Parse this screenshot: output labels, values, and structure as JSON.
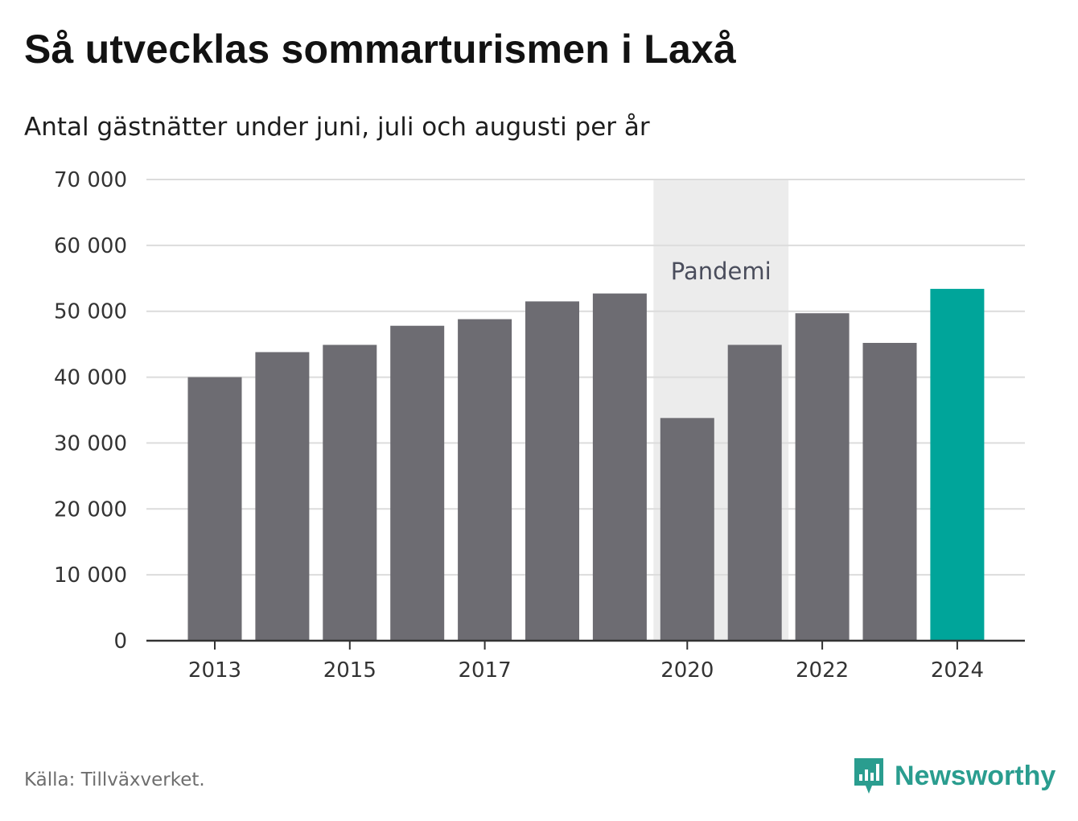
{
  "title": "Så utvecklas sommarturismen i Laxå",
  "subtitle": "Antal gästnätter under juni, juli och augusti per år",
  "source": "Källa: Tillväxverket.",
  "brand": {
    "name": "Newsworthy",
    "icon": "newsworthy-logo-icon"
  },
  "colors": {
    "bar": "#6d6c72",
    "highlight": "#00a59a",
    "shade": "#ececec",
    "grid": "#dcdcdc",
    "axis": "#333333",
    "brand": "#2a9d8f"
  },
  "chart_data": {
    "type": "bar",
    "title": "Så utvecklas sommarturismen i Laxå",
    "subtitle": "Antal gästnätter under juni, juli och augusti per år",
    "categories": [
      2013,
      2014,
      2015,
      2016,
      2017,
      2018,
      2019,
      2020,
      2021,
      2022,
      2023,
      2024
    ],
    "values": [
      40000,
      43800,
      44900,
      47800,
      48800,
      51500,
      52700,
      33800,
      44900,
      49700,
      45200,
      53400
    ],
    "highlight": [
      2024
    ],
    "x_tick_labels": [
      "2013",
      "2015",
      "2017",
      "2020",
      "2022",
      "2024"
    ],
    "y_tick_labels": [
      "0",
      "10 000",
      "20 000",
      "30 000",
      "40 000",
      "50 000",
      "60 000",
      "70 000"
    ],
    "ylim": [
      0,
      70000
    ],
    "grid": true,
    "annotation": {
      "label": "Pandemi",
      "x_start": 2020,
      "x_end": 2021
    }
  }
}
